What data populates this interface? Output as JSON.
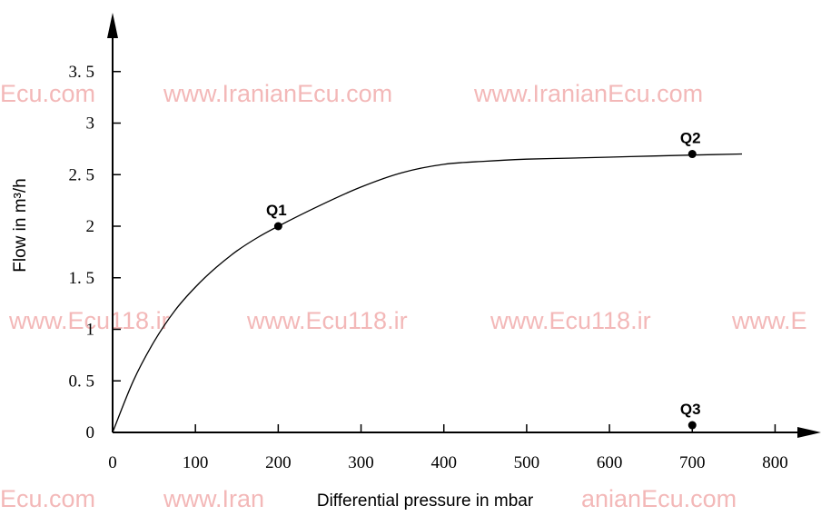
{
  "watermarks": [
    "Ecu.com",
    "www.IranianEcu.com",
    "www.IranianEcu.com",
    "www.Ecu118.ir",
    "www.Ecu118.ir",
    "www.Ecu118.ir",
    "www.E",
    "Ecu.com",
    "www.Iran",
    "anianEcu.com"
  ],
  "chart_data": {
    "type": "line",
    "title": "",
    "xlabel": "Differential pressure in mbar",
    "ylabel": "Flow in m³/h",
    "xlim": [
      0,
      840
    ],
    "ylim": [
      0,
      3.75
    ],
    "x_ticks": [
      0,
      100,
      200,
      300,
      400,
      500,
      600,
      700,
      800
    ],
    "x_tick_labels": [
      "0",
      "100",
      "200",
      "300",
      "400",
      "500",
      "600",
      "700",
      "800"
    ],
    "y_ticks": [
      0,
      0.5,
      1,
      1.5,
      2,
      2.5,
      3,
      3.5
    ],
    "y_tick_labels": [
      "0",
      "0. 5",
      "1",
      "1. 5",
      "2",
      "2. 5",
      "3",
      "3. 5"
    ],
    "grid": false,
    "legend": "none",
    "series": [
      {
        "x": [
          0,
          25,
          50,
          75,
          100,
          125,
          150,
          175,
          200,
          250,
          300,
          350,
          400,
          450,
          500,
          550,
          600,
          650,
          700,
          760
        ],
        "y": [
          0,
          0.5,
          0.88,
          1.18,
          1.41,
          1.6,
          1.76,
          1.89,
          2.0,
          2.2,
          2.38,
          2.52,
          2.6,
          2.63,
          2.65,
          2.66,
          2.67,
          2.68,
          2.69,
          2.7
        ]
      }
    ],
    "points": [
      {
        "label": "Q1",
        "x": 200,
        "y": 2.0
      },
      {
        "label": "Q2",
        "x": 700,
        "y": 2.7
      },
      {
        "label": "Q3",
        "x": 700,
        "y": 0.07
      }
    ]
  }
}
